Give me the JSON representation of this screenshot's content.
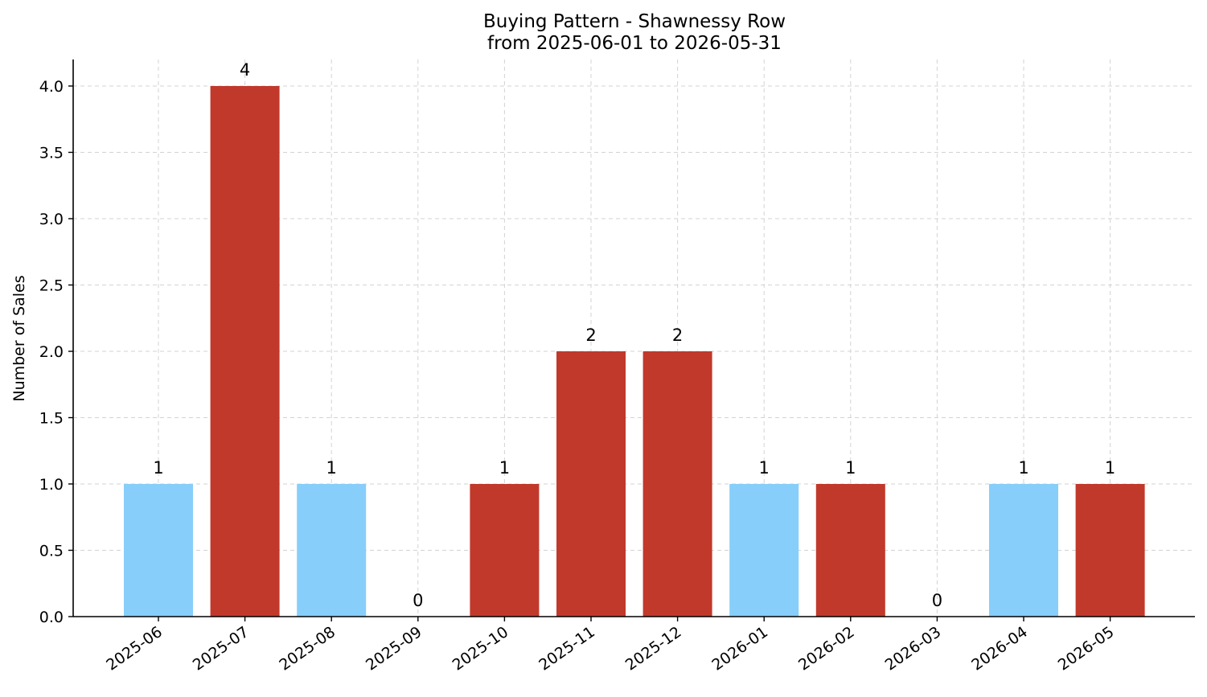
{
  "chart_data": {
    "type": "bar",
    "title": "Buying Pattern - Shawnessy Row",
    "subtitle": "from 2025-06-01 to 2026-05-31",
    "xlabel": "",
    "ylabel": "Number of Sales",
    "categories": [
      "2025-06",
      "2025-07",
      "2025-08",
      "2025-09",
      "2025-10",
      "2025-11",
      "2025-12",
      "2026-01",
      "2026-02",
      "2026-03",
      "2026-04",
      "2026-05"
    ],
    "values": [
      1,
      4,
      1,
      0,
      1,
      2,
      2,
      1,
      1,
      0,
      1,
      1
    ],
    "data_labels": [
      "1",
      "4",
      "1",
      "0",
      "1",
      "2",
      "2",
      "1",
      "1",
      "0",
      "1",
      "1"
    ],
    "bar_colors": [
      "#87CEFA",
      "#C0392B",
      "#87CEFA",
      "#87CEFA",
      "#C0392B",
      "#C0392B",
      "#C0392B",
      "#87CEFA",
      "#C0392B",
      "#87CEFA",
      "#87CEFA",
      "#C0392B"
    ],
    "ylim": [
      0,
      4.2
    ],
    "yticks": [
      0.0,
      0.5,
      1.0,
      1.5,
      2.0,
      2.5,
      3.0,
      3.5,
      4.0
    ],
    "ytick_labels": [
      "0.0",
      "0.5",
      "1.0",
      "1.5",
      "2.0",
      "2.5",
      "3.0",
      "3.5",
      "4.0"
    ],
    "grid": true,
    "legend": "none"
  }
}
